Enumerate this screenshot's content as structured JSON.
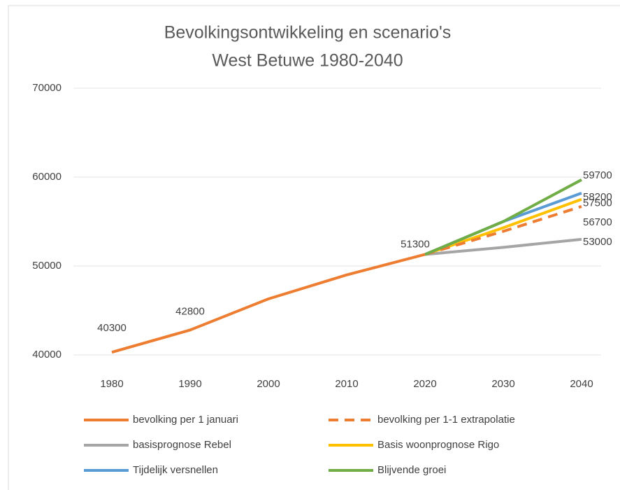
{
  "chart_data": {
    "type": "line",
    "title": [
      "Bevolkingsontwikkeling  en scenario's",
      "West Betuwe 1980-2040"
    ],
    "categories": [
      "1980",
      "1990",
      "2000",
      "2010",
      "2020",
      "2030",
      "2040"
    ],
    "ylim": [
      40000,
      70000
    ],
    "yticks": [
      40000,
      50000,
      60000,
      70000
    ],
    "grid": true,
    "legend": "bottom",
    "series": [
      {
        "name": "bevolking per 1 januari",
        "color": "#ed7d31",
        "dash": false,
        "values": [
          40300,
          42800,
          46300,
          49000,
          51300,
          null,
          null
        ]
      },
      {
        "name": "bevolking per 1-1 extrapolatie",
        "color": "#ed7d31",
        "dash": true,
        "values": [
          null,
          null,
          null,
          null,
          51300,
          53900,
          56700
        ]
      },
      {
        "name": "basisprognose Rebel",
        "color": "#a5a5a5",
        "dash": false,
        "values": [
          null,
          null,
          null,
          null,
          51300,
          52100,
          53000
        ]
      },
      {
        "name": "Basis woonprognose Rigo",
        "color": "#ffc000",
        "dash": false,
        "values": [
          null,
          null,
          null,
          null,
          51300,
          54300,
          57500
        ]
      },
      {
        "name": "Tijdelijk versnellen",
        "color": "#5b9bd5",
        "dash": false,
        "values": [
          null,
          null,
          null,
          null,
          51300,
          55000,
          58200
        ]
      },
      {
        "name": "Blijvende groei",
        "color": "#70ad47",
        "dash": false,
        "values": [
          null,
          null,
          null,
          null,
          51300,
          55000,
          59700
        ]
      }
    ]
  }
}
